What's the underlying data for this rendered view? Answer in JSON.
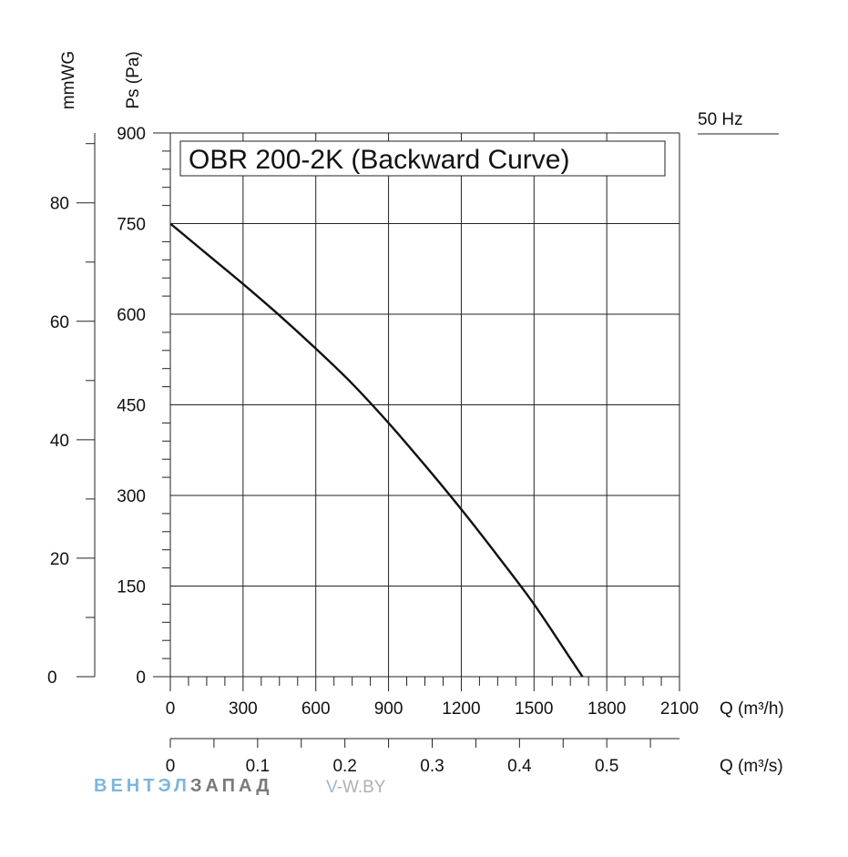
{
  "chart_data": {
    "type": "line",
    "title": "OBR 200-2K  (Backward Curve)",
    "frequency_label": "50 Hz",
    "x_axis": {
      "label": "Q (m³/h)",
      "range": [
        0,
        2100
      ],
      "ticks": [
        0,
        300,
        600,
        900,
        1200,
        1500,
        1800,
        2100
      ],
      "tick_labels": [
        "0",
        "300",
        "600",
        "900",
        "1200",
        "1500",
        "1800",
        "2100"
      ]
    },
    "x2_axis": {
      "label": "Q (m³/s)",
      "range": [
        0,
        0.5833
      ],
      "ticks": [
        0,
        0.1,
        0.2,
        0.3,
        0.4,
        0.5
      ],
      "tick_labels": [
        "0",
        "0.1",
        "0.2",
        "0.3",
        "0.4",
        "0.5"
      ]
    },
    "y_axis": {
      "label": "Ps (Pa)",
      "range": [
        0,
        900
      ],
      "ticks": [
        0,
        150,
        300,
        450,
        600,
        750,
        900
      ],
      "tick_labels": [
        "0",
        "150",
        "300",
        "450",
        "600",
        "750",
        "900"
      ]
    },
    "y2_axis": {
      "label": "mmWG",
      "range": [
        0,
        91.8
      ],
      "ticks": [
        0,
        20,
        40,
        60,
        80
      ],
      "tick_labels": [
        "0",
        "20",
        "40",
        "60",
        "80"
      ]
    },
    "grid": true,
    "series": [
      {
        "name": "OBR 200-2K",
        "x": [
          0,
          150,
          300,
          450,
          600,
          750,
          900,
          1050,
          1200,
          1350,
          1500,
          1650,
          1700
        ],
        "y": [
          750,
          700,
          650,
          598,
          543,
          485,
          420,
          350,
          277,
          200,
          120,
          30,
          0
        ]
      }
    ]
  },
  "watermark": {
    "brand_part1": "ВЕНТЭЛ",
    "brand_part2": "ЗАПАД",
    "url_part1": "V-",
    "url_part2": "W.BY"
  }
}
